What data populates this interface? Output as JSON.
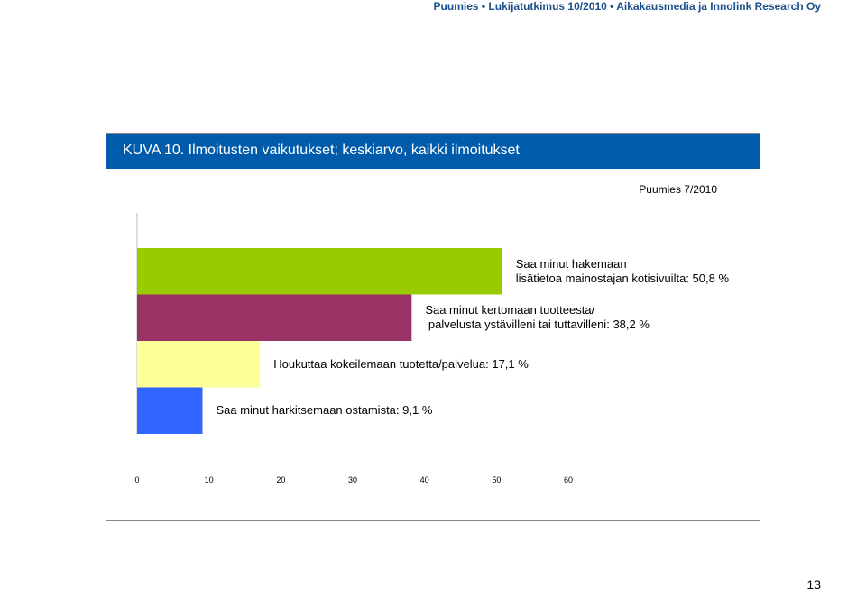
{
  "header": {
    "text": "Puumies • Lukijatutkimus 10/2010 • Aikakausmedia ja Innolink Research Oy"
  },
  "page_number": "13",
  "chart_data": {
    "type": "hbar",
    "title": "KUVA 10. Ilmoitusten vaikutukset; keskiarvo, kaikki ilmoitukset",
    "subtitle": "Puumies 7/2010",
    "categories": [
      "Saa minut hakemaan\nlisätietoa mainostajan kotisivuilta:",
      "Saa minut kertomaan tuotteesta/\n palvelusta ystävilleni tai tuttavilleni:",
      "Houkuttaa kokeilemaan tuotetta/palvelua:",
      "Saa minut harkitsemaan ostamista:"
    ],
    "values": [
      50.8,
      38.2,
      17.1,
      9.1
    ],
    "value_labels": [
      "50,8 %",
      "38,2 %",
      "17,1 %",
      "9,1 %"
    ],
    "colors": [
      "#99cc00",
      "#993366",
      "#ffff99",
      "#3366ff"
    ],
    "xlim": [
      0,
      60
    ],
    "xticks": [
      0,
      10,
      20,
      30,
      40,
      50,
      60
    ]
  }
}
